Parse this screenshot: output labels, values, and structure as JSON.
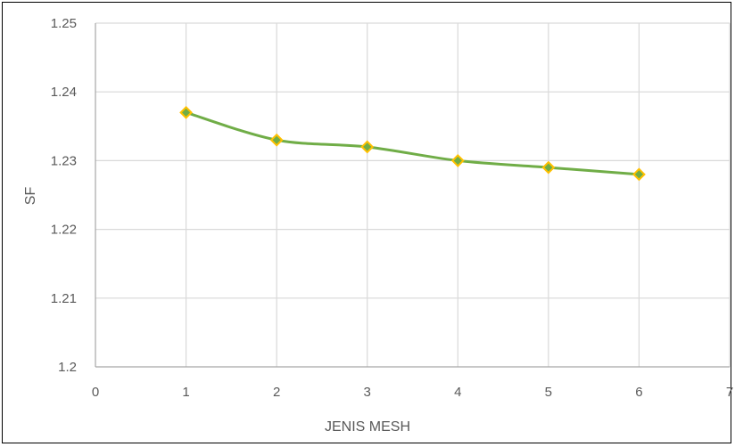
{
  "chart_data": {
    "type": "line",
    "xlabel": "JENIS MESH",
    "ylabel": "SF",
    "xlim": [
      0,
      7
    ],
    "ylim": [
      1.2,
      1.25
    ],
    "xticks": [
      "0",
      "1",
      "2",
      "3",
      "4",
      "5",
      "6",
      "7"
    ],
    "yticks": [
      "1.2",
      "1.21",
      "1.22",
      "1.23",
      "1.24",
      "1.25"
    ],
    "grid": true,
    "series": [
      {
        "x": [
          1,
          2,
          3,
          4,
          5,
          6
        ],
        "y": [
          1.237,
          1.233,
          1.232,
          1.23,
          1.229,
          1.228
        ],
        "line_color": "#70AD47",
        "marker": "diamond",
        "marker_fill": "#70AD47",
        "marker_edge": "#FFC000"
      }
    ],
    "colors": {
      "grid": "#D9D9D9",
      "axis": "#A6A6A6",
      "text": "#595959"
    }
  }
}
